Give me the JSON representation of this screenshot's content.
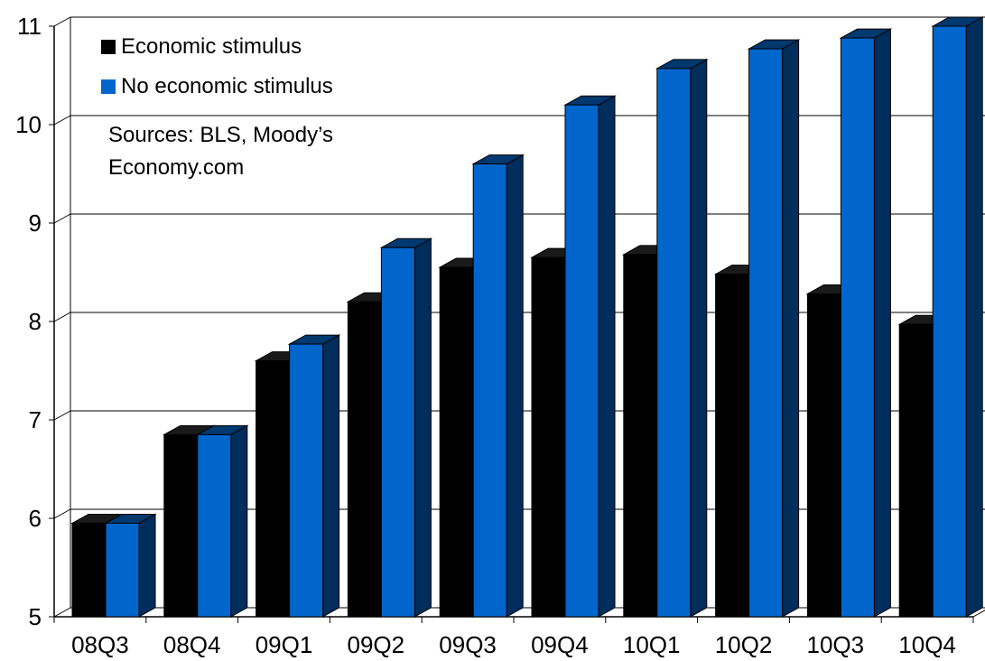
{
  "chart_data": {
    "type": "bar",
    "categories": [
      "08Q3",
      "08Q4",
      "09Q1",
      "09Q2",
      "09Q3",
      "09Q4",
      "10Q1",
      "10Q2",
      "10Q3",
      "10Q4"
    ],
    "series": [
      {
        "name": "Economic stimulus",
        "color": "#000000",
        "values": [
          5.95,
          6.85,
          7.6,
          8.2,
          8.55,
          8.65,
          8.68,
          8.48,
          8.28,
          7.97
        ]
      },
      {
        "name": "No economic stimulus",
        "color": "#0066CC",
        "values": [
          5.95,
          6.85,
          7.77,
          8.75,
          9.6,
          10.2,
          10.57,
          10.77,
          10.88,
          11.0
        ]
      }
    ],
    "yticks": [
      "5",
      "6",
      "7",
      "8",
      "9",
      "10",
      "11"
    ],
    "ylim": [
      5,
      11
    ],
    "grid": true,
    "legend_position": "top-left",
    "annotation": [
      "Sources: BLS, Moody’s",
      "Economy.com"
    ]
  }
}
